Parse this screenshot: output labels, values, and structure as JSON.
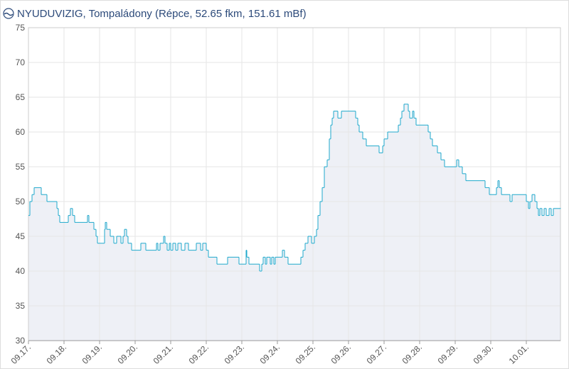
{
  "chart_data": {
    "type": "step-line",
    "title": "NYUDUVIZIG, Tompaládony (Répce, 52.65 fkm, 151.61 mBf)",
    "color": "#1fa9cc",
    "fill": "#eef0f6",
    "grid": true,
    "xlim": [
      0,
      14.96
    ],
    "xticks": [
      {
        "value": 0,
        "label": "09.17."
      },
      {
        "value": 1,
        "label": "09.18."
      },
      {
        "value": 2,
        "label": "09.19."
      },
      {
        "value": 3,
        "label": "09.20."
      },
      {
        "value": 4,
        "label": "09.21."
      },
      {
        "value": 5,
        "label": "09.22."
      },
      {
        "value": 6,
        "label": "09.23."
      },
      {
        "value": 7,
        "label": "09.24."
      },
      {
        "value": 8,
        "label": "09.25."
      },
      {
        "value": 9,
        "label": "09.26."
      },
      {
        "value": 10,
        "label": "09.27."
      },
      {
        "value": 11,
        "label": "09.28."
      },
      {
        "value": 12,
        "label": "09.29."
      },
      {
        "value": 13,
        "label": "09.30."
      },
      {
        "value": 14,
        "label": "10.01."
      }
    ],
    "ylim": [
      30,
      75
    ],
    "yticks": [
      30,
      35,
      40,
      45,
      50,
      55,
      60,
      65,
      70,
      75
    ],
    "series": [
      {
        "name": "Tompaládony",
        "x": [
          0,
          0.04,
          0.1,
          0.16,
          0.36,
          0.52,
          0.8,
          0.84,
          0.88,
          0.9,
          1.12,
          1.18,
          1.24,
          1.3,
          1.66,
          1.7,
          1.84,
          1.9,
          1.94,
          2.14,
          2.16,
          2.2,
          2.3,
          2.4,
          2.48,
          2.6,
          2.66,
          2.7,
          2.76,
          2.8,
          2.9,
          3.16,
          3.3,
          3.6,
          3.64,
          3.7,
          3.8,
          3.84,
          3.9,
          3.96,
          4.0,
          4.06,
          4.14,
          4.2,
          4.3,
          4.4,
          4.5,
          4.72,
          4.84,
          4.9,
          5.0,
          5.06,
          5.3,
          5.6,
          5.92,
          6.12,
          6.14,
          6.2,
          6.5,
          6.56,
          6.6,
          6.66,
          6.7,
          6.8,
          6.84,
          6.9,
          6.94,
          7.14,
          7.2,
          7.3,
          7.66,
          7.72,
          7.78,
          7.86,
          7.96,
          8.04,
          8.1,
          8.14,
          8.2,
          8.26,
          8.32,
          8.4,
          8.46,
          8.5,
          8.54,
          8.58,
          8.7,
          8.8,
          9.2,
          9.26,
          9.3,
          9.4,
          9.5,
          9.86,
          9.96,
          10.0,
          10.1,
          10.4,
          10.46,
          10.5,
          10.56,
          10.68,
          10.72,
          10.8,
          10.84,
          10.9,
          11.24,
          11.3,
          11.36,
          11.5,
          11.6,
          11.7,
          12.04,
          12.1,
          12.2,
          12.3,
          12.84,
          12.96,
          13.16,
          13.2,
          13.24,
          13.3,
          13.54,
          13.6,
          14.0,
          14.06,
          14.1,
          14.16,
          14.24,
          14.3,
          14.34,
          14.38,
          14.44,
          14.5,
          14.56,
          14.64,
          14.7,
          14.76,
          14.96
        ],
        "values": [
          48,
          50,
          51,
          52,
          51,
          50,
          49,
          48,
          47,
          47,
          48,
          49,
          48,
          47,
          48,
          47,
          46,
          45,
          44,
          46,
          47,
          46,
          45,
          44,
          45,
          44,
          45,
          46,
          45,
          44,
          43,
          44,
          43,
          44,
          43,
          44,
          45,
          44,
          43,
          44,
          43,
          44,
          43,
          44,
          43,
          44,
          43,
          44,
          43,
          44,
          43,
          42,
          41,
          42,
          41,
          43,
          42,
          41,
          40,
          41,
          42,
          41,
          42,
          41,
          42,
          41,
          42,
          43,
          42,
          41,
          42,
          43,
          44,
          45,
          44,
          45,
          46,
          48,
          50,
          52,
          55,
          56,
          59,
          61,
          62,
          63,
          62,
          63,
          62,
          61,
          60,
          59,
          58,
          57,
          58,
          59,
          60,
          61,
          62,
          63,
          64,
          63,
          62,
          63,
          62,
          61,
          60,
          59,
          58,
          57,
          56,
          55,
          56,
          55,
          54,
          53,
          52,
          51,
          52,
          53,
          52,
          51,
          50,
          51,
          50,
          49,
          50,
          51,
          50,
          49,
          48,
          49,
          48,
          49,
          48,
          49,
          48,
          49,
          49
        ]
      }
    ]
  }
}
